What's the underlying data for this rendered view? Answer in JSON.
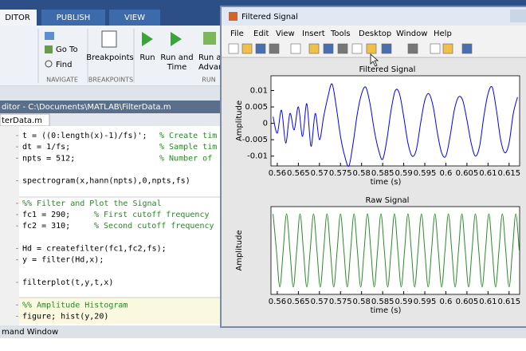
{
  "editor": {
    "tabs": [
      "DITOR",
      "PUBLISH",
      "VIEW"
    ],
    "buttons": {
      "go_to": "Go To",
      "find": "Find",
      "breakpoints": "Breakpoints",
      "run": "Run",
      "run_and_time": [
        "Run and",
        "Time"
      ],
      "run_and_advance": [
        "Run and",
        "Advanc"
      ]
    },
    "sections": [
      "NAVIGATE",
      "BREAKPOINTS",
      "RUN"
    ],
    "path": "ditor - C:\\Documents\\MATLAB\\FilterData.m",
    "file_tab": "terData.m",
    "code": [
      {
        "code": "t = ((0:length(x)-1)/fs)';",
        "comment": "% Create tim"
      },
      {
        "code": "dt = 1/fs;",
        "comment": "% Sample tim"
      },
      {
        "code": "npts = 512;",
        "comment": "% Number of"
      },
      {
        "code": "spectrogram(x,hann(npts),0,npts,fs)"
      },
      {
        "comment": "%% Filter and Plot the Signal"
      },
      {
        "code": "fc1 = 290;",
        "comment": "% First cutoff frequency"
      },
      {
        "code": "fc2 = 310;",
        "comment": "% Second cutoff frequency"
      },
      {
        "code": "Hd = createfilter(fc1,fc2,fs);"
      },
      {
        "code": "y = filter(Hd,x);"
      },
      {
        "code": "filterplot(t,y,t,x)"
      },
      {
        "comment": "%% Amplitude Histogram"
      },
      {
        "code": "figure; hist(y,20)"
      }
    ],
    "command_window": "mand Window"
  },
  "figure": {
    "title": "Filtered Signal",
    "menu": [
      "File",
      "Edit",
      "View",
      "Insert",
      "Tools",
      "Desktop",
      "Window",
      "Help"
    ]
  },
  "chart_data": [
    {
      "type": "line",
      "title": "Filtered Signal",
      "xlabel": "time (s)",
      "ylabel": "Amplitude",
      "color": "#0000ff",
      "x": [
        0.559,
        0.56,
        0.561,
        0.562,
        0.563,
        0.564,
        0.565,
        0.566,
        0.567,
        0.568,
        0.569,
        0.57,
        0.571,
        0.572,
        0.573,
        0.574,
        0.575,
        0.576,
        0.577,
        0.578,
        0.579,
        0.58,
        0.581,
        0.582,
        0.583,
        0.584,
        0.585,
        0.586,
        0.587,
        0.588,
        0.589,
        0.59,
        0.591,
        0.592,
        0.593,
        0.594,
        0.595,
        0.596,
        0.597,
        0.598,
        0.599,
        0.6,
        0.601,
        0.602,
        0.603,
        0.604,
        0.605,
        0.606,
        0.607,
        0.608,
        0.609,
        0.61,
        0.611,
        0.612,
        0.613,
        0.614,
        0.615,
        0.616,
        0.617
      ],
      "values": [
        0.002,
        -0.003,
        0.004,
        -0.006,
        0.003,
        -0.002,
        0.005,
        -0.004,
        0.006,
        -0.007,
        0.003,
        -0.005,
        0.002,
        0.008,
        0.012,
        0.005,
        -0.004,
        -0.01,
        -0.013,
        -0.006,
        0.003,
        0.009,
        0.011,
        0.006,
        -0.002,
        -0.008,
        -0.011,
        -0.005,
        0.004,
        0.01,
        0.009,
        0.002,
        -0.006,
        -0.01,
        -0.008,
        0,
        0.007,
        0.009,
        0.005,
        -0.003,
        -0.009,
        -0.01,
        -0.004,
        0.004,
        0.008,
        0.007,
        0.001,
        -0.006,
        -0.01,
        -0.007,
        0.002,
        0.009,
        0.011,
        0.004,
        -0.005,
        -0.009,
        -0.006,
        0.003,
        0.008
      ],
      "xlim": [
        0.5585,
        0.6175
      ],
      "ylim": [
        -0.013,
        0.0145
      ],
      "xticks": [
        0.56,
        0.565,
        0.57,
        0.575,
        0.58,
        0.585,
        0.59,
        0.595,
        0.6,
        0.605,
        0.61,
        0.615
      ],
      "yticks": [
        -0.01,
        -0.005,
        0,
        0.005,
        0.01
      ]
    },
    {
      "type": "line",
      "title": "Raw Signal",
      "xlabel": "time (s)",
      "ylabel": "Amplitude",
      "color": "#2a8a2a",
      "x": [
        0.559,
        0.5598,
        0.5606,
        0.5614,
        0.5622,
        0.563,
        0.5638,
        0.5646,
        0.5654,
        0.5662,
        0.567,
        0.5678,
        0.5686,
        0.5694,
        0.5702,
        0.571,
        0.5718,
        0.5726,
        0.5734,
        0.5742,
        0.575,
        0.5758,
        0.5766,
        0.5774,
        0.5782,
        0.579,
        0.5798,
        0.5806,
        0.5814,
        0.5822,
        0.583,
        0.5838,
        0.5846,
        0.5854,
        0.5862,
        0.587,
        0.5878,
        0.5886,
        0.5894,
        0.5902,
        0.591,
        0.5918,
        0.5926,
        0.5934,
        0.5942,
        0.595,
        0.5958,
        0.5966,
        0.5974,
        0.5982,
        0.599,
        0.5998,
        0.6006,
        0.6014,
        0.6022,
        0.603,
        0.6038,
        0.6046,
        0.6054,
        0.6062,
        0.607,
        0.6078,
        0.6086,
        0.6094,
        0.6102,
        0.611,
        0.6118,
        0.6126,
        0.6134,
        0.6142,
        0.615,
        0.6158,
        0.6166,
        0.6174
      ],
      "values": [
        1,
        0,
        -1,
        0,
        1,
        0,
        -1,
        0,
        1,
        0,
        -1,
        0,
        1,
        0,
        -1,
        0,
        1,
        0,
        -1,
        0,
        1,
        0,
        -1,
        0,
        1,
        0,
        -1,
        0,
        1,
        0,
        -1,
        0,
        1,
        0,
        -1,
        0,
        1,
        0,
        -1,
        0,
        1,
        0,
        -1,
        0,
        1,
        0,
        -1,
        0,
        1,
        0,
        -1,
        0,
        1,
        0,
        -1,
        0,
        1,
        0,
        -1,
        0,
        1,
        0,
        -1,
        0,
        1,
        0,
        -1,
        0,
        1,
        0,
        -1,
        0,
        1,
        0
      ],
      "xlim": [
        0.5585,
        0.6175
      ],
      "ylim": [
        -1.2,
        1.2
      ],
      "xticks": [
        0.56,
        0.565,
        0.57,
        0.575,
        0.58,
        0.585,
        0.59,
        0.595,
        0.6,
        0.605,
        0.61,
        0.615
      ]
    }
  ]
}
